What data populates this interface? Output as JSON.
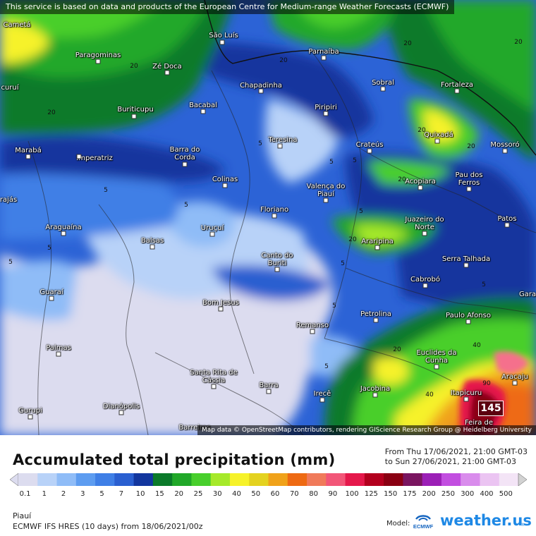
{
  "banner": "This service is based on data and products of the European Centre for Medium-range Weather Forecasts (ECMWF)",
  "attribution": "Map data © OpenStreetMap contributors, rendering GIScience Research Group @ Heidelberg University",
  "max_value_label": "145",
  "cities": [
    "Cametá",
    "São Luís",
    "Parnaíba",
    "Paragominas",
    "Zé Doca",
    "Chapadinha",
    "Sobral",
    "Fortaleza",
    "curuí",
    "Buriticupu",
    "Bacabal",
    "Piripiri",
    "Quixadá",
    "Marabá",
    "Imperatriz",
    "Barra do Corda",
    "Teresina",
    "Crateús",
    "Mossoró",
    "Acopiara",
    "Pau dos Ferros",
    "rajás",
    "Colinas",
    "Valença do Piauí",
    "Floriano",
    "Juazeiro do Norte",
    "Patos",
    "Araguaína",
    "Uruçuí",
    "Araripina",
    "Balsas",
    "Canto do Buriti",
    "Serra Talhada",
    "Cabrobó",
    "Guaraí",
    "Bom Jesus",
    "Petrolina",
    "Paulo Afonso",
    "Gara",
    "Remanso",
    "Palmas",
    "Euclides da Cunha",
    "Santa Rita de Cássia",
    "Barra",
    "Irecê",
    "Jacobina",
    "Itapicuru",
    "Aracaju",
    "Gurupi",
    "Dianópolis",
    "Feira de",
    "Barreiras"
  ],
  "contour_labels": [
    "20",
    "20",
    "20",
    "20",
    "20",
    "20",
    "5",
    "5",
    "5",
    "5",
    "5",
    "5",
    "5",
    "5",
    "5",
    "5",
    "5",
    "5",
    "20",
    "20",
    "20",
    "40",
    "40",
    "90",
    "20"
  ],
  "legend": {
    "title": "Accumulated total precipitation (mm)",
    "from": "From Thu 17/06/2021, 21:00 GMT-03",
    "to": "to Sun 27/06/2021, 21:00 GMT-03",
    "ticks": [
      "0.1",
      "1",
      "2",
      "3",
      "5",
      "7",
      "10",
      "15",
      "20",
      "25",
      "30",
      "40",
      "50",
      "60",
      "70",
      "80",
      "90",
      "100",
      "125",
      "150",
      "175",
      "200",
      "250",
      "300",
      "400",
      "500"
    ],
    "colors": [
      "#dcdcef",
      "#b8d2f8",
      "#8fbcf7",
      "#5d9cf0",
      "#3f7fe6",
      "#2a5fd0",
      "#12369e",
      "#0b7a2a",
      "#21a829",
      "#48cf2c",
      "#a6e92a",
      "#f6f22a",
      "#e4d21f",
      "#f0a21a",
      "#ee6a13",
      "#f07a5a",
      "#f25678",
      "#e5184b",
      "#b3001e",
      "#8a0012",
      "#7a1560",
      "#9b1fb6",
      "#c24ee0",
      "#d98cec",
      "#ebc4f2",
      "#f3e4f6",
      "#d2d2d2"
    ]
  },
  "region": "Piauí",
  "model": "ECMWF IFS HRES (10 days) from 18/06/2021/00z",
  "model_label": "Model:",
  "ecmwf_logo_text": "ECMWF",
  "brand": "weather.us"
}
